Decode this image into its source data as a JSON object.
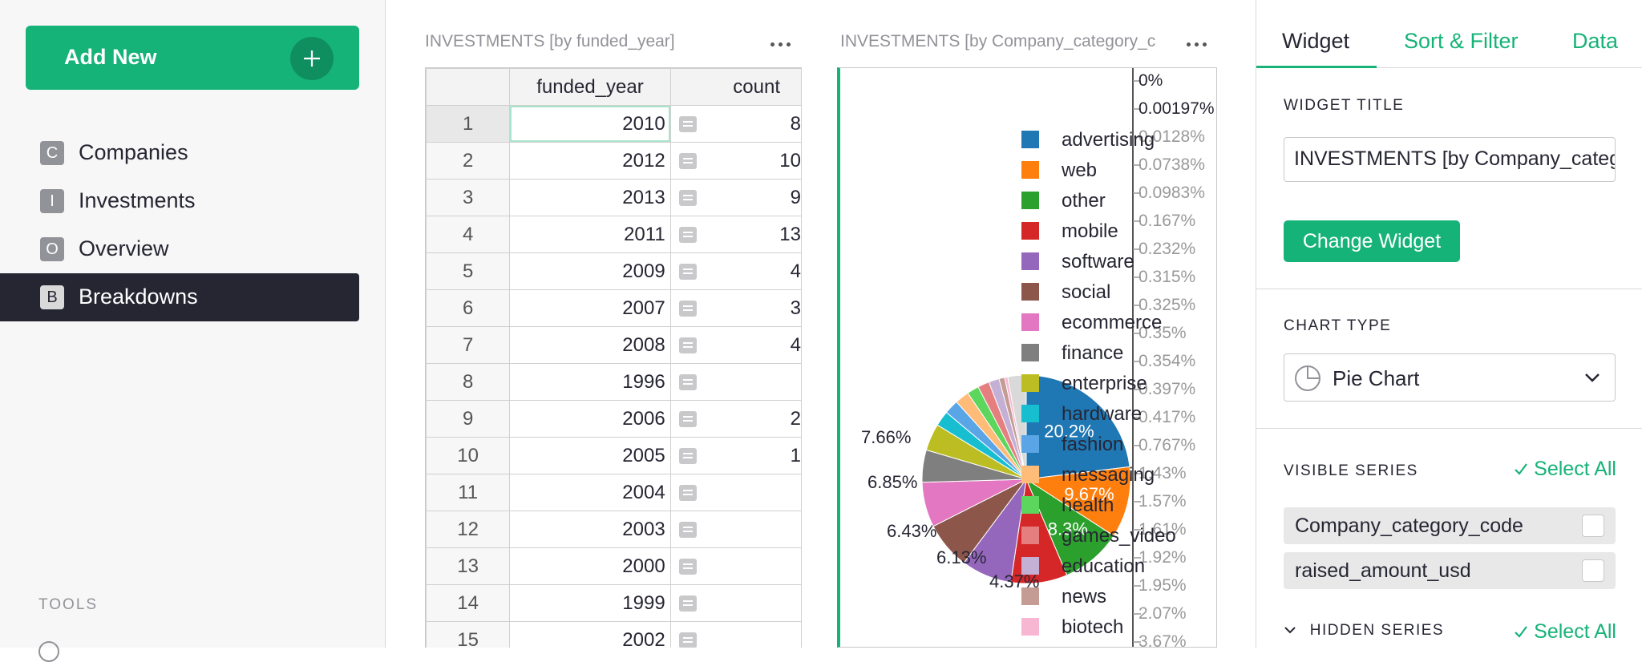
{
  "sidebar": {
    "add_new": "Add New",
    "items": [
      {
        "badge": "C",
        "label": "Companies"
      },
      {
        "badge": "I",
        "label": "Investments"
      },
      {
        "badge": "O",
        "label": "Overview"
      },
      {
        "badge": "B",
        "label": "Breakdowns"
      }
    ],
    "active_item": "Breakdowns",
    "tools_label": "TOOLS"
  },
  "table_widget": {
    "title": "INVESTMENTS [by funded_year]",
    "headers": [
      "funded_year",
      "count"
    ],
    "rows": [
      {
        "n": "1",
        "year": "2010",
        "count": "8"
      },
      {
        "n": "2",
        "year": "2012",
        "count": "10"
      },
      {
        "n": "3",
        "year": "2013",
        "count": "9"
      },
      {
        "n": "4",
        "year": "2011",
        "count": "13"
      },
      {
        "n": "5",
        "year": "2009",
        "count": "4"
      },
      {
        "n": "6",
        "year": "2007",
        "count": "3"
      },
      {
        "n": "7",
        "year": "2008",
        "count": "4"
      },
      {
        "n": "8",
        "year": "1996",
        "count": ""
      },
      {
        "n": "9",
        "year": "2006",
        "count": "2"
      },
      {
        "n": "10",
        "year": "2005",
        "count": "1"
      },
      {
        "n": "11",
        "year": "2004",
        "count": ""
      },
      {
        "n": "12",
        "year": "2003",
        "count": ""
      },
      {
        "n": "13",
        "year": "2000",
        "count": ""
      },
      {
        "n": "14",
        "year": "1999",
        "count": ""
      },
      {
        "n": "15",
        "year": "2002",
        "count": ""
      }
    ]
  },
  "chart_widget": {
    "title": "INVESTMENTS [by Company_category_c"
  },
  "chart_data": {
    "type": "pie",
    "slices": [
      {
        "category": "advertising",
        "percent": 20.2,
        "color": "#1f77b4",
        "label": "20.2%"
      },
      {
        "category": "web",
        "percent": 9.67,
        "color": "#ff7f0e",
        "label": "9.67%"
      },
      {
        "category": "other",
        "percent": 8.3,
        "color": "#2ca02c",
        "label": "8.3%"
      },
      {
        "category": "mobile",
        "percent": 7.66,
        "color": "#d62728",
        "label": "7.66%"
      },
      {
        "category": "software",
        "percent": 6.85,
        "color": "#9467bd",
        "label": "6.85%"
      },
      {
        "category": "social",
        "percent": 6.43,
        "color": "#8c564b",
        "label": "6.43%"
      },
      {
        "category": "ecommerce",
        "percent": 6.13,
        "color": "#e377c2",
        "label": "6.13%"
      },
      {
        "category": "finance",
        "percent": 4.37,
        "color": "#7f7f7f",
        "label": "4.37%"
      },
      {
        "category": "enterprise",
        "percent": 3.67,
        "color": "#bcbd22",
        "label": "3.67%"
      },
      {
        "category": "hardware",
        "percent": 2.07,
        "color": "#17becf",
        "label": "2.07%"
      },
      {
        "category": "fashion",
        "percent": 1.95,
        "color": "#5aa5e6",
        "label": "1.95%"
      },
      {
        "category": "messaging",
        "percent": 1.92,
        "color": "#ffbb78",
        "label": "1.92%"
      },
      {
        "category": "health",
        "percent": 1.61,
        "color": "#5cd65c",
        "label": "1.61%"
      },
      {
        "category": "games_video",
        "percent": 1.57,
        "color": "#e57f7f",
        "label": "1.57%"
      },
      {
        "category": "education",
        "percent": 1.43,
        "color": "#c5b0d5",
        "label": "1.43%"
      },
      {
        "category": "news",
        "percent": 0.767,
        "color": "#c49c94",
        "label": "0.767%"
      },
      {
        "category": "biotech",
        "percent": 0.417,
        "color": "#f7b6d2",
        "label": "0.417%"
      }
    ],
    "small_labels": [
      "0%",
      "0.00197%",
      "0.0128%",
      "0.0738%",
      "0.0983%",
      "0.167%",
      "0.232%",
      "0.315%",
      "0.325%",
      "0.35%",
      "0.354%",
      "0.397%",
      "0.417%",
      "0.767%",
      "1.43%",
      "1.57%",
      "1.61%",
      "1.92%",
      "1.95%",
      "2.07%",
      "3.67%"
    ],
    "legend": [
      "advertising",
      "web",
      "other",
      "mobile",
      "software",
      "social",
      "ecommerce",
      "finance",
      "enterprise",
      "hardware",
      "fashion",
      "messaging",
      "health",
      "games_video",
      "education",
      "news",
      "biotech"
    ]
  },
  "right_panel": {
    "tabs": [
      "Widget",
      "Sort & Filter",
      "Data"
    ],
    "active_tab": "Widget",
    "widget_title_label": "WIDGET TITLE",
    "widget_title_value": "INVESTMENTS [by Company_category_code]",
    "change_widget": "Change Widget",
    "chart_type_label": "CHART TYPE",
    "chart_type_value": "Pie Chart",
    "visible_series_label": "VISIBLE SERIES",
    "select_all": "Select All",
    "visible_series": [
      "Company_category_code",
      "raised_amount_usd"
    ],
    "hidden_series_label": "HIDDEN SERIES",
    "colors": {
      "accent": "#16b378",
      "dark": "#262633"
    }
  }
}
